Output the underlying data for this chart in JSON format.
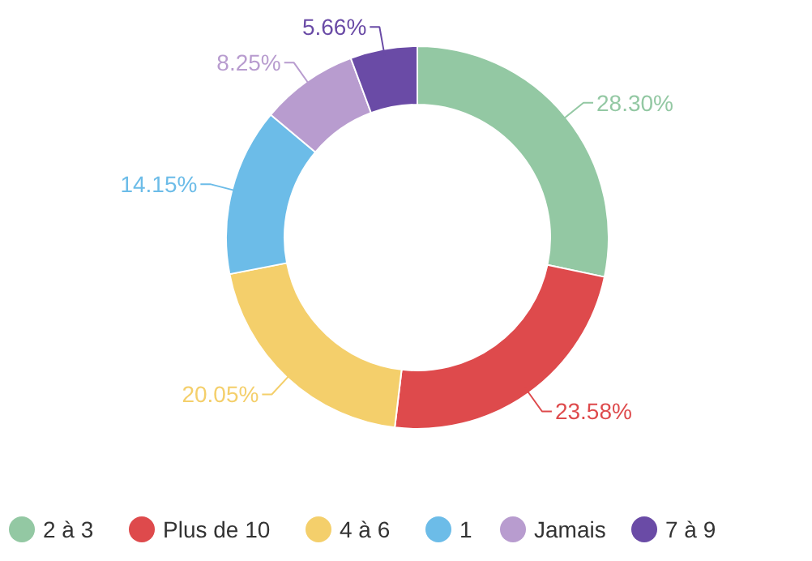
{
  "chart_data": {
    "type": "donut",
    "categories": [
      "2 à 3",
      "Plus de 10",
      "4 à 6",
      "1",
      "Jamais",
      "7 à 9"
    ],
    "values": [
      28.3,
      23.58,
      20.05,
      14.15,
      8.25,
      5.66
    ],
    "colors": [
      "#93c8a3",
      "#de4a4c",
      "#f4cf6b",
      "#6cbce8",
      "#b89ccf",
      "#6a4ba6"
    ],
    "value_labels": [
      "28.30%",
      "23.58%",
      "20.05%",
      "14.15%",
      "8.25%",
      "5.66%"
    ],
    "legend": "bottom"
  }
}
